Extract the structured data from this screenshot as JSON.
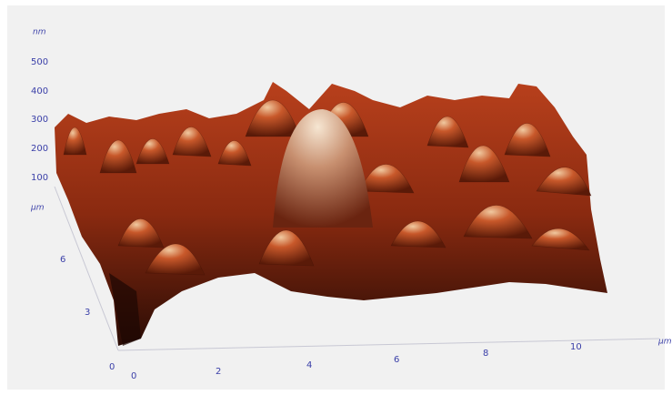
{
  "z_axis": {
    "unit": "nm",
    "ticks": [
      500,
      400,
      300,
      200,
      100
    ]
  },
  "y_axis": {
    "unit": "µm",
    "ticks": [
      6,
      3,
      0
    ]
  },
  "x_axis": {
    "unit": "µm",
    "ticks": [
      0,
      2,
      4,
      6,
      8,
      10
    ]
  }
}
